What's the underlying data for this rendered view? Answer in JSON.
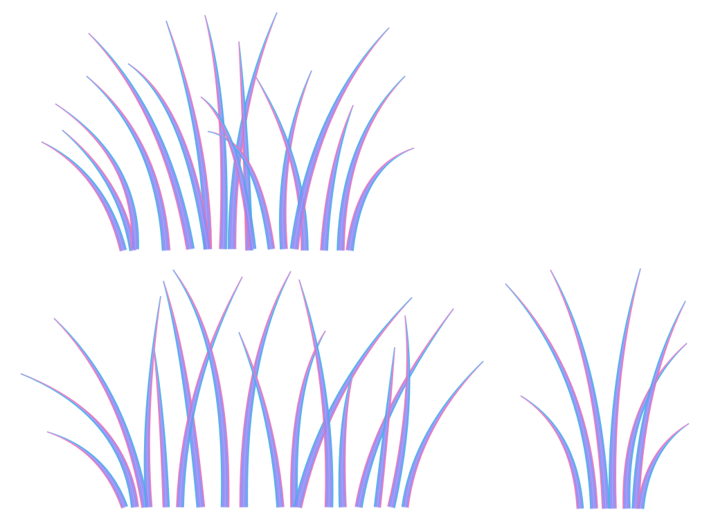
{
  "image": {
    "background_color": "#ffffff",
    "subject": "grass clumps",
    "clump_count": 3,
    "palette": {
      "blade_fill": "#8a8cf5",
      "blade_highlight": "#b9a5ff",
      "edge_cyan": "#35b6e0",
      "edge_pink": "#ff6fa8"
    }
  }
}
